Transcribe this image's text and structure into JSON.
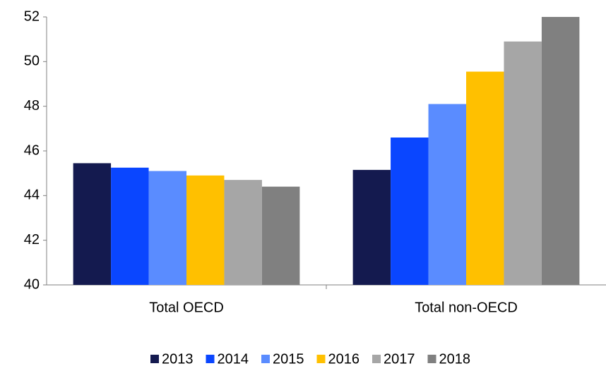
{
  "chart_data": {
    "type": "bar",
    "categories": [
      "Total OECD",
      "Total non-OECD"
    ],
    "series": [
      {
        "name": "2013",
        "color": "#141a4f",
        "values": [
          45.45,
          45.15
        ]
      },
      {
        "name": "2014",
        "color": "#0a46ff",
        "values": [
          45.25,
          46.6
        ]
      },
      {
        "name": "2015",
        "color": "#5a8cff",
        "values": [
          45.1,
          48.1
        ]
      },
      {
        "name": "2016",
        "color": "#ffc000",
        "values": [
          44.9,
          49.55
        ]
      },
      {
        "name": "2017",
        "color": "#a6a6a6",
        "values": [
          44.7,
          50.9
        ]
      },
      {
        "name": "2018",
        "color": "#808080",
        "values": [
          44.4,
          52
        ]
      }
    ],
    "ylim": [
      40,
      52
    ],
    "yticks": [
      40,
      42,
      44,
      46,
      48,
      50,
      52
    ],
    "grid": false,
    "legend": "bottom"
  }
}
